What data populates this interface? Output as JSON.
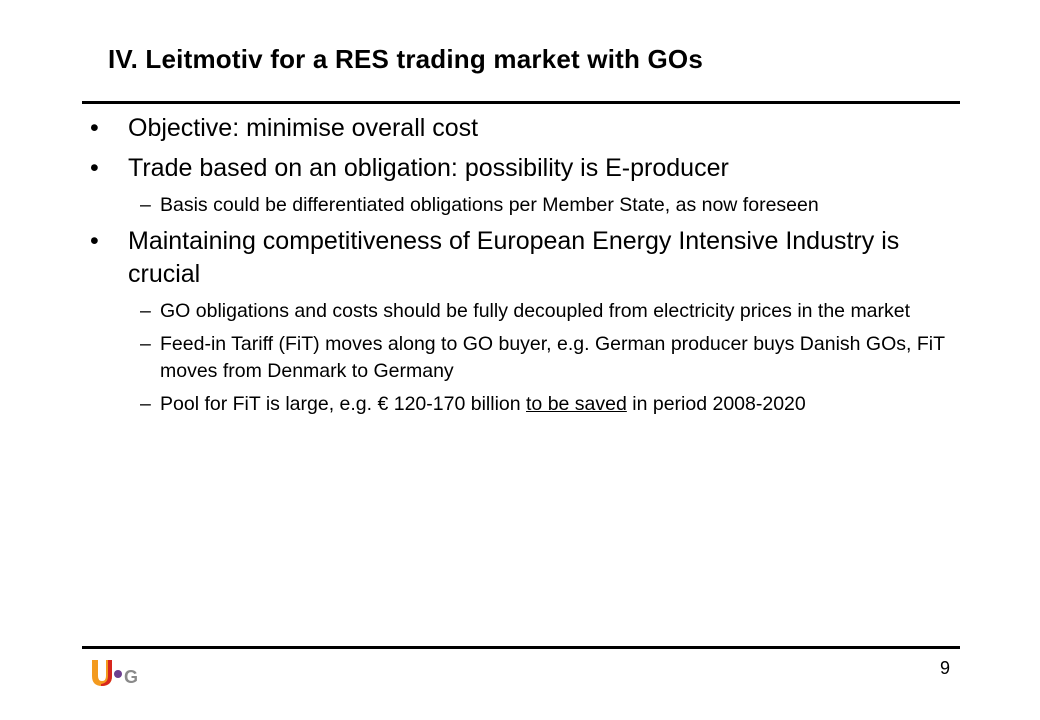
{
  "slide": {
    "title": "IV. Leitmotiv for a RES trading market with GOs",
    "page_number": "9",
    "logo_icon": "usg-logo-icon"
  },
  "bullets": [
    {
      "marker": "•",
      "text": "Objective: minimise overall cost"
    },
    {
      "marker": "•",
      "text": "Trade based on an obligation: possibility is E-producer"
    },
    {
      "marker": "–",
      "text": "Basis could be differentiated obligations per Member State, as now foreseen"
    },
    {
      "marker": "•",
      "text": "Maintaining competitiveness of European Energy Intensive Industry is crucial"
    },
    {
      "marker": "–",
      "text": "GO obligations and costs should be fully decoupled from electricity prices in the market"
    },
    {
      "marker": "–",
      "text": "Feed-in Tariff (FiT) moves along to GO buyer, e.g. German producer buys Danish GOs, FiT moves from Denmark to Germany"
    },
    {
      "marker": "–",
      "pre": "Pool for FiT is large, e.g. € 120-170 billion ",
      "underlined": "to be saved",
      "post": " in period 2008-2020"
    }
  ],
  "colors": {
    "logo_orange": "#f39a1e",
    "logo_red": "#d7261e",
    "logo_purple": "#6d3f8f",
    "logo_grey": "#8a8a8a"
  }
}
